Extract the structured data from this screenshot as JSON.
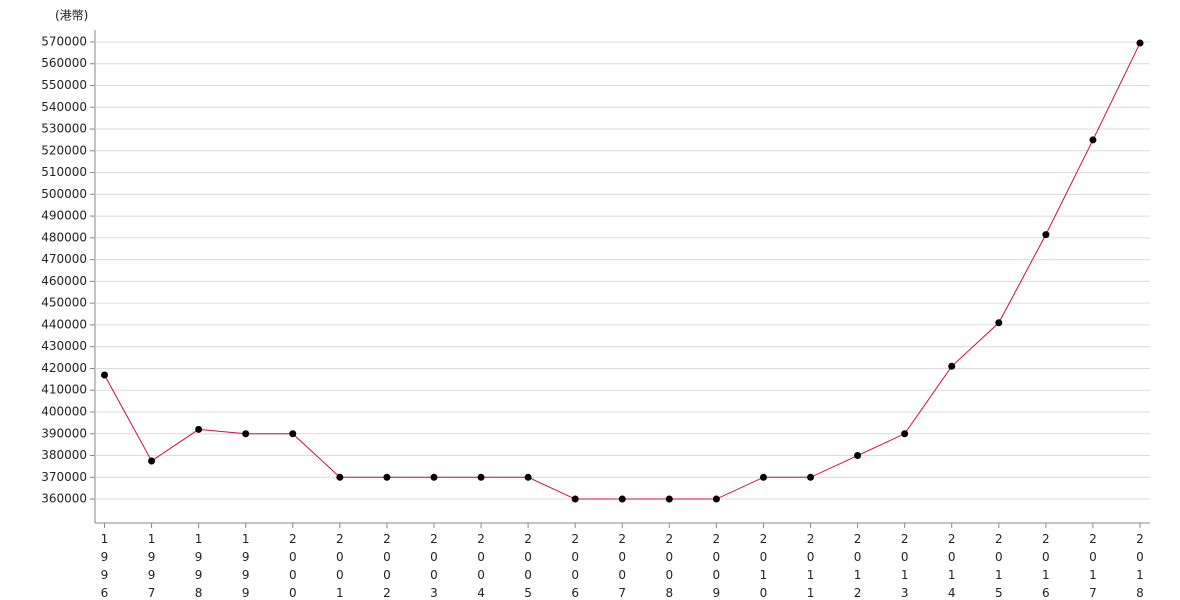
{
  "chart_data": {
    "type": "line",
    "y_label": "(港幣)",
    "categories": [
      "1996",
      "1997",
      "1998",
      "1999",
      "2000",
      "2001",
      "2002",
      "2003",
      "2004",
      "2005",
      "2006",
      "2007",
      "2008",
      "2009",
      "2010",
      "2011",
      "2012",
      "2013",
      "2014",
      "2015",
      "2016",
      "2017",
      "2018"
    ],
    "values": [
      417000,
      377500,
      392000,
      390000,
      390000,
      370000,
      370000,
      370000,
      370000,
      370000,
      360000,
      360000,
      360000,
      360000,
      370000,
      370000,
      380000,
      390000,
      421000,
      441000,
      481500,
      525000,
      569500
    ],
    "color": "#d0103a",
    "marker_color": "#000000",
    "ylim": [
      349000,
      575500
    ],
    "yticks": [
      360000,
      370000,
      380000,
      390000,
      400000,
      410000,
      420000,
      430000,
      440000,
      450000,
      460000,
      470000,
      480000,
      490000,
      500000,
      510000,
      520000,
      530000,
      540000,
      550000,
      560000,
      570000
    ],
    "grid": true
  }
}
